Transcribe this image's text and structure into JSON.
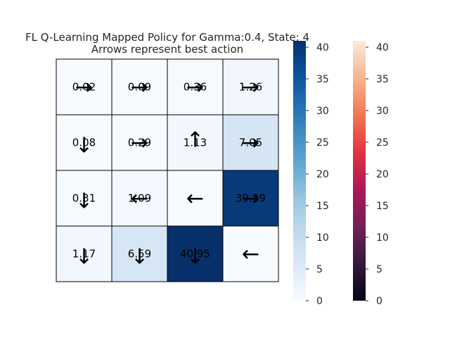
{
  "chart_data": {
    "type": "heatmap",
    "title": "FL Q-Learning Mapped Policy for Gamma:0.4, State: 4",
    "subtitle": "Arrows represent best action",
    "rows": 4,
    "cols": 4,
    "values": [
      [
        0.02,
        0.09,
        0.36,
        1.26
      ],
      [
        0.08,
        0.29,
        1.13,
        7.05
      ],
      [
        0.31,
        1.09,
        null,
        39.39
      ],
      [
        1.17,
        6.59,
        40.95,
        null
      ]
    ],
    "value_labels": [
      [
        "0.02",
        "0.09",
        "0.36",
        "1.26"
      ],
      [
        "0.08",
        "0.29",
        "1.13",
        "7.05"
      ],
      [
        "0.31",
        "1.09",
        "",
        "39.39"
      ],
      [
        "1.17",
        "6.59",
        "40.95",
        ""
      ]
    ],
    "arrows": [
      [
        "right",
        "right",
        "right",
        "right"
      ],
      [
        "down",
        "right",
        "up",
        "right"
      ],
      [
        "down",
        "left",
        "left",
        "right"
      ],
      [
        "down",
        "down",
        "down",
        "left"
      ]
    ],
    "arrow_glyphs": {
      "left": "←",
      "right": "→",
      "up": "↑",
      "down": "↓"
    },
    "colorbars": [
      {
        "name": "Blues",
        "ticks": [
          "0",
          "5",
          "10",
          "15",
          "20",
          "25",
          "30",
          "35",
          "40"
        ],
        "range": [
          0,
          41.0
        ],
        "colors": [
          "#f7fbff",
          "#deebf7",
          "#c6dbef",
          "#9ecae1",
          "#6baed6",
          "#4292c6",
          "#2171b5",
          "#08519c",
          "#08306b"
        ]
      },
      {
        "name": "rocket",
        "ticks": [
          "0",
          "5",
          "10",
          "15",
          "20",
          "25",
          "30",
          "35",
          "40"
        ],
        "range": [
          0,
          41.0
        ],
        "colors": [
          "#03051a",
          "#36193e",
          "#701f57",
          "#ae1759",
          "#e13342",
          "#f37651",
          "#f6b48f",
          "#faebdd"
        ]
      }
    ],
    "grid": true,
    "legend": "right"
  }
}
